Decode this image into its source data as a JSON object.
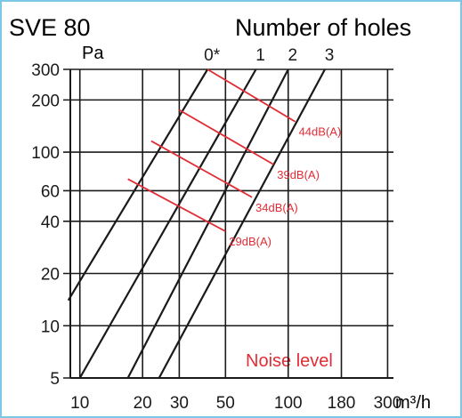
{
  "title": "SVE 80",
  "legend_title": "Number of holes",
  "colors": {
    "axis": "#1a1a1a",
    "grid": "#1a1a1a",
    "noise": "#e12d36",
    "border": "#7cc7e6"
  },
  "chart_data": {
    "type": "line",
    "title": "SVE 80",
    "xlabel": "m³/h",
    "ylabel": "Pa",
    "x_scale": "log",
    "y_scale": "log",
    "xlim": [
      9,
      320
    ],
    "ylim": [
      5,
      300
    ],
    "x_ticks": [
      10,
      20,
      30,
      50,
      100,
      180,
      300
    ],
    "x_tick_labels": [
      "10",
      "20",
      "30",
      "50",
      "100",
      "180",
      "300"
    ],
    "y_ticks": [
      5,
      10,
      20,
      40,
      60,
      100,
      200,
      300
    ],
    "y_tick_labels": [
      "5",
      "10",
      "20",
      "40",
      "60",
      "100",
      "200",
      "300"
    ],
    "grid": true,
    "legend_title": "Number of holes",
    "series": [
      {
        "name": "0*",
        "x": [
          8.8,
          41
        ],
        "y": [
          14,
          300
        ]
      },
      {
        "name": "1",
        "x": [
          10,
          70
        ],
        "y": [
          5,
          300
        ]
      },
      {
        "name": "2",
        "x": [
          17,
          100
        ],
        "y": [
          5,
          300
        ]
      },
      {
        "name": "3",
        "x": [
          24,
          150
        ],
        "y": [
          5,
          300
        ]
      }
    ],
    "noise_title": "Noise level",
    "noise_lines": [
      {
        "label": "44dB(A)",
        "x": [
          41,
          108
        ],
        "y": [
          300,
          150
        ]
      },
      {
        "label": "39dB(A)",
        "x": [
          30,
          85
        ],
        "y": [
          175,
          85
        ]
      },
      {
        "label": "34dB(A)",
        "x": [
          22,
          67
        ],
        "y": [
          116,
          55
        ]
      },
      {
        "label": "29dB(A)",
        "x": [
          17,
          50
        ],
        "y": [
          70,
          35
        ]
      }
    ]
  }
}
